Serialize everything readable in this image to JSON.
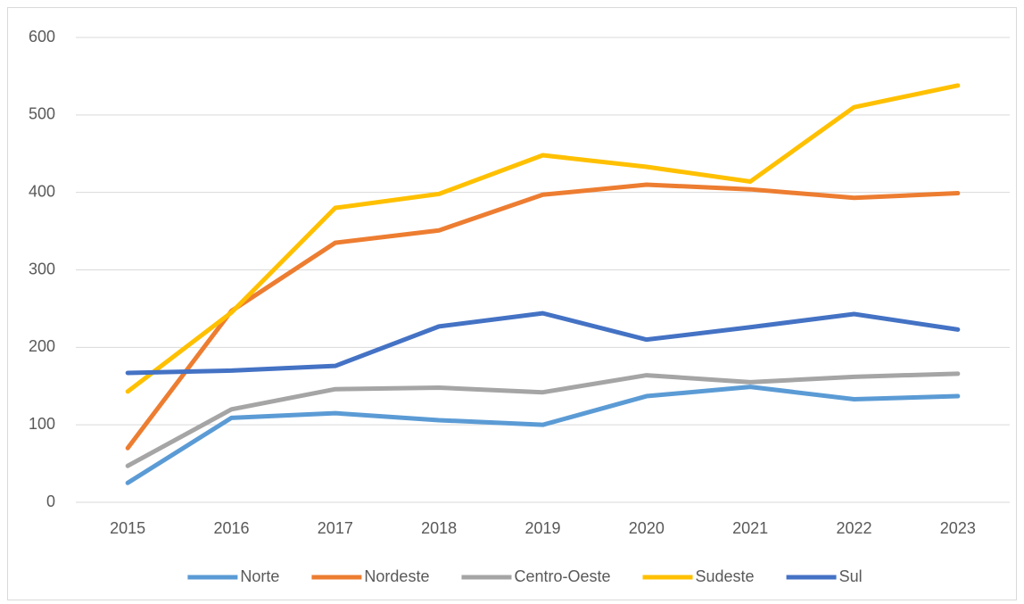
{
  "chart_data": {
    "type": "line",
    "categories": [
      "2015",
      "2016",
      "2017",
      "2018",
      "2019",
      "2020",
      "2021",
      "2022",
      "2023"
    ],
    "series": [
      {
        "name": "Norte",
        "color": "#5b9bd5",
        "values": [
          25,
          109,
          115,
          106,
          100,
          137,
          149,
          133,
          137
        ]
      },
      {
        "name": "Nordeste",
        "color": "#ed7d31",
        "values": [
          70,
          247,
          335,
          351,
          397,
          410,
          404,
          393,
          399
        ]
      },
      {
        "name": "Centro-Oeste",
        "color": "#a5a5a5",
        "values": [
          47,
          120,
          146,
          148,
          142,
          164,
          155,
          162,
          166
        ]
      },
      {
        "name": "Sudeste",
        "color": "#ffc000",
        "values": [
          143,
          245,
          380,
          398,
          448,
          433,
          414,
          510,
          538
        ]
      },
      {
        "name": "Sul",
        "color": "#4472c4",
        "values": [
          167,
          170,
          176,
          227,
          244,
          210,
          226,
          243,
          223
        ]
      }
    ],
    "ylim": [
      0,
      600
    ],
    "yticks": [
      0,
      100,
      200,
      300,
      400,
      500,
      600
    ],
    "grid": true,
    "legend": "bottom"
  }
}
